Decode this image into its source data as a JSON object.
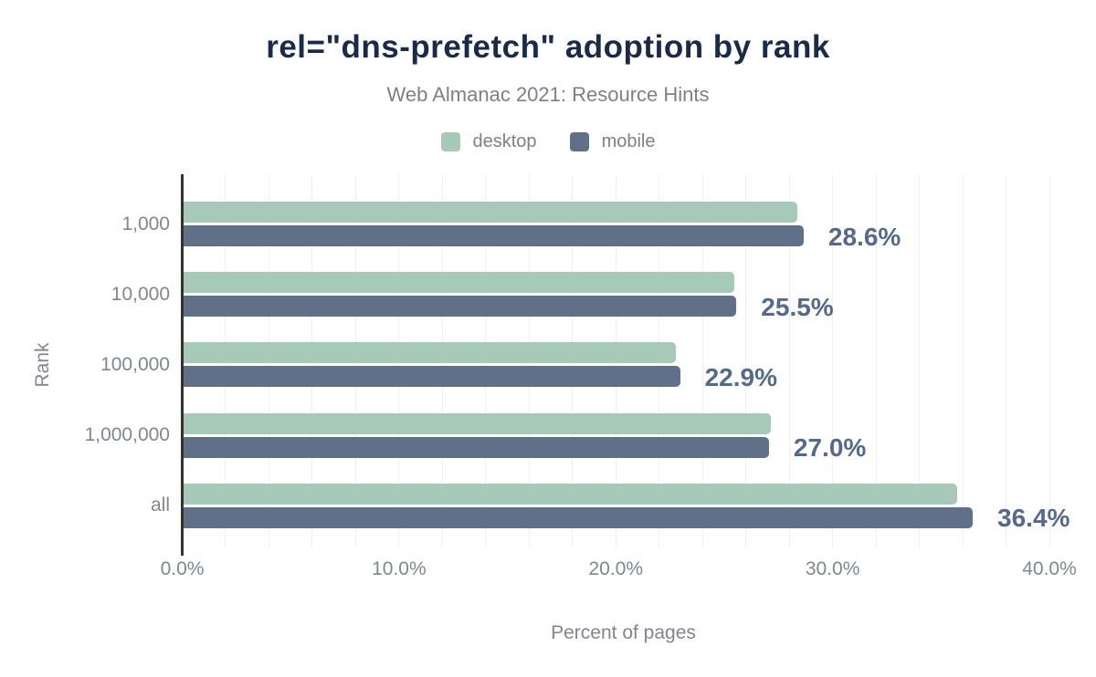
{
  "chart_data": {
    "type": "bar",
    "orientation": "horizontal",
    "title": "rel=\"dns-prefetch\" adoption by rank",
    "subtitle": "Web Almanac 2021: Resource Hints",
    "xlabel": "Percent of pages",
    "ylabel": "Rank",
    "categories": [
      "1,000",
      "10,000",
      "100,000",
      "1,000,000",
      "all"
    ],
    "series": [
      {
        "name": "desktop",
        "color": "#a6c9b8",
        "values": [
          28.3,
          25.4,
          22.7,
          27.1,
          35.7
        ]
      },
      {
        "name": "mobile",
        "color": "#607089",
        "values": [
          28.6,
          25.5,
          22.9,
          27.0,
          36.4
        ]
      }
    ],
    "data_labels": {
      "labeled_series": "mobile",
      "values": [
        "28.6%",
        "25.5%",
        "22.9%",
        "27.0%",
        "36.4%"
      ],
      "color": "#546a8d"
    },
    "xlim": [
      0,
      40
    ],
    "x_ticks": [
      {
        "label": "0.0%",
        "value": 0
      },
      {
        "label": "10.0%",
        "value": 10
      },
      {
        "label": "20.0%",
        "value": 20
      },
      {
        "label": "30.0%",
        "value": 30
      },
      {
        "label": "40.0%",
        "value": 40
      }
    ],
    "grid": {
      "on": true,
      "step_percent": 2,
      "color": "#f0f0f0"
    },
    "axis_line_color": "#333333",
    "legend_position": "top",
    "title_color": "#1a2b49",
    "text_color": "#81868e"
  }
}
